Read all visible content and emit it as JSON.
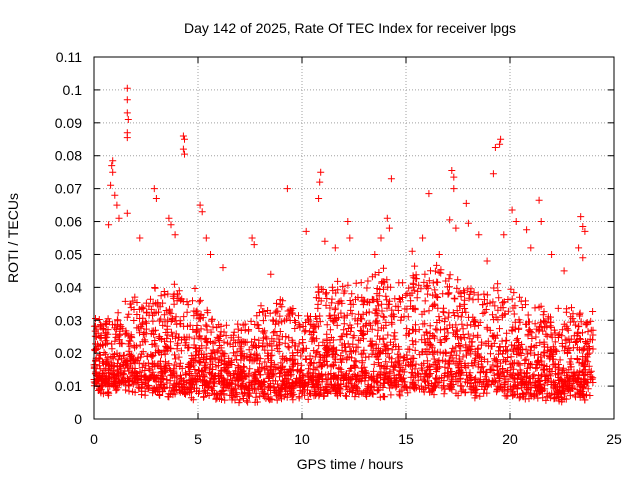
{
  "chart_data": {
    "type": "scatter",
    "title": "Day 142 of 2025, Rate Of TEC Index for receiver lpgs",
    "xlabel": "GPS time / hours",
    "ylabel": "ROTI / TECUs",
    "xlim": [
      0,
      25
    ],
    "ylim": [
      0,
      0.11
    ],
    "x_ticks": [
      0,
      5,
      10,
      15,
      20,
      25
    ],
    "x_tick_labels": [
      "0",
      "5",
      "10",
      "15",
      "20",
      "25"
    ],
    "y_ticks": [
      0,
      0.01,
      0.02,
      0.03,
      0.04,
      0.05,
      0.06,
      0.07,
      0.08,
      0.09,
      0.1,
      0.11
    ],
    "y_tick_labels": [
      "0",
      "0.01",
      "0.02",
      "0.03",
      "0.04",
      "0.05",
      "0.06",
      "0.07",
      "0.08",
      "0.09",
      "0.1",
      "0.11"
    ],
    "grid": true,
    "marker": "plus",
    "color": "#ff0000",
    "baseline": [
      [
        0,
        0.016
      ],
      [
        1,
        0.016
      ],
      [
        2,
        0.017
      ],
      [
        3,
        0.018
      ],
      [
        4,
        0.017
      ],
      [
        5,
        0.017
      ],
      [
        6,
        0.014
      ],
      [
        7,
        0.013
      ],
      [
        8,
        0.015
      ],
      [
        9,
        0.016
      ],
      [
        10,
        0.015
      ],
      [
        11,
        0.018
      ],
      [
        12,
        0.019
      ],
      [
        13,
        0.018
      ],
      [
        14,
        0.02
      ],
      [
        15,
        0.019
      ],
      [
        16,
        0.02
      ],
      [
        17,
        0.021
      ],
      [
        18,
        0.018
      ],
      [
        19,
        0.018
      ],
      [
        20,
        0.017
      ],
      [
        21,
        0.016
      ],
      [
        22,
        0.015
      ],
      [
        23,
        0.015
      ],
      [
        24,
        0.015
      ]
    ],
    "spread": [
      [
        0,
        0.012
      ],
      [
        1,
        0.014
      ],
      [
        2,
        0.016
      ],
      [
        3,
        0.018
      ],
      [
        4,
        0.02
      ],
      [
        5,
        0.018
      ],
      [
        6,
        0.012
      ],
      [
        7,
        0.012
      ],
      [
        8,
        0.016
      ],
      [
        9,
        0.017
      ],
      [
        10,
        0.014
      ],
      [
        11,
        0.02
      ],
      [
        12,
        0.021
      ],
      [
        13,
        0.02
      ],
      [
        14,
        0.023
      ],
      [
        15,
        0.021
      ],
      [
        16,
        0.022
      ],
      [
        17,
        0.023
      ],
      [
        18,
        0.02
      ],
      [
        19,
        0.02
      ],
      [
        20,
        0.019
      ],
      [
        21,
        0.016
      ],
      [
        22,
        0.015
      ],
      [
        23,
        0.016
      ],
      [
        24,
        0.014
      ]
    ],
    "outliers": [
      [
        1.6,
        0.1005
      ],
      [
        1.6,
        0.097
      ],
      [
        1.6,
        0.093
      ],
      [
        1.65,
        0.091
      ],
      [
        1.6,
        0.087
      ],
      [
        1.6,
        0.0855
      ],
      [
        0.9,
        0.0785
      ],
      [
        0.85,
        0.077
      ],
      [
        0.9,
        0.075
      ],
      [
        0.8,
        0.071
      ],
      [
        1.0,
        0.068
      ],
      [
        1.1,
        0.065
      ],
      [
        1.2,
        0.061
      ],
      [
        1.6,
        0.0625
      ],
      [
        0.7,
        0.059
      ],
      [
        2.9,
        0.07
      ],
      [
        3.0,
        0.067
      ],
      [
        3.6,
        0.061
      ],
      [
        3.7,
        0.059
      ],
      [
        3.9,
        0.056
      ],
      [
        4.3,
        0.086
      ],
      [
        4.35,
        0.085
      ],
      [
        4.3,
        0.082
      ],
      [
        4.35,
        0.0805
      ],
      [
        5.1,
        0.065
      ],
      [
        5.2,
        0.063
      ],
      [
        5.4,
        0.055
      ],
      [
        5.6,
        0.05
      ],
      [
        7.6,
        0.055
      ],
      [
        7.7,
        0.053
      ],
      [
        9.3,
        0.07
      ],
      [
        10.2,
        0.057
      ],
      [
        10.9,
        0.075
      ],
      [
        10.85,
        0.072
      ],
      [
        10.8,
        0.067
      ],
      [
        11.1,
        0.054
      ],
      [
        11.6,
        0.052
      ],
      [
        12.2,
        0.06
      ],
      [
        12.3,
        0.055
      ],
      [
        13.8,
        0.055
      ],
      [
        14.1,
        0.061
      ],
      [
        14.2,
        0.058
      ],
      [
        14.3,
        0.073
      ],
      [
        15.3,
        0.051
      ],
      [
        16.1,
        0.0685
      ],
      [
        17.2,
        0.0755
      ],
      [
        17.3,
        0.0735
      ],
      [
        17.3,
        0.07
      ],
      [
        17.1,
        0.0605
      ],
      [
        17.4,
        0.058
      ],
      [
        17.9,
        0.0655
      ],
      [
        18.0,
        0.0595
      ],
      [
        18.5,
        0.056
      ],
      [
        19.2,
        0.0745
      ],
      [
        19.3,
        0.0825
      ],
      [
        19.55,
        0.085
      ],
      [
        19.5,
        0.0835
      ],
      [
        19.7,
        0.056
      ],
      [
        20.1,
        0.0635
      ],
      [
        20.3,
        0.06
      ],
      [
        20.8,
        0.0575
      ],
      [
        21.4,
        0.0665
      ],
      [
        21.5,
        0.06
      ],
      [
        22.0,
        0.05
      ],
      [
        23.4,
        0.0615
      ],
      [
        23.5,
        0.0585
      ],
      [
        23.6,
        0.057
      ],
      [
        23.3,
        0.052
      ],
      [
        23.5,
        0.049
      ],
      [
        15.8,
        0.055
      ],
      [
        16.6,
        0.05
      ],
      [
        18.9,
        0.048
      ],
      [
        2.2,
        0.055
      ],
      [
        6.2,
        0.046
      ],
      [
        8.5,
        0.044
      ],
      [
        13.5,
        0.05
      ],
      [
        21.0,
        0.052
      ],
      [
        22.6,
        0.045
      ]
    ]
  }
}
